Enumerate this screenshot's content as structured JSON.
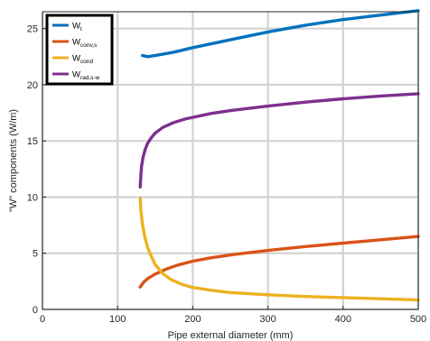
{
  "chart_data": {
    "type": "line",
    "xlabel": "Pipe external diameter (mm)",
    "ylabel": "\"W\" components (W/m)",
    "xlim": [
      0,
      500
    ],
    "ylim": [
      0,
      26.5
    ],
    "xticks": [
      0,
      100,
      200,
      300,
      400,
      500
    ],
    "yticks": [
      0,
      5,
      10,
      15,
      20,
      25
    ],
    "xtick_labels": [
      "0",
      "100",
      "200",
      "300",
      "400",
      "500"
    ],
    "ytick_labels": [
      "0",
      "5",
      "10",
      "15",
      "20",
      "25"
    ],
    "grid": true,
    "legend_position": "top-left",
    "series": [
      {
        "name": "W_t",
        "label_main": "W",
        "label_sub": "t",
        "color": "#0072BD",
        "x": [
          133,
          140,
          150,
          175,
          200,
          250,
          300,
          350,
          400,
          450,
          500
        ],
        "y": [
          22.6,
          22.5,
          22.6,
          22.9,
          23.3,
          24.0,
          24.7,
          25.3,
          25.8,
          26.2,
          26.6
        ]
      },
      {
        "name": "W_conv,s",
        "label_main": "W",
        "label_sub": "conv,s",
        "color": "#D95319",
        "x": [
          130,
          135,
          140,
          150,
          165,
          180,
          200,
          225,
          250,
          275,
          300,
          350,
          400,
          450,
          500
        ],
        "y": [
          2.0,
          2.45,
          2.75,
          3.15,
          3.6,
          3.95,
          4.3,
          4.6,
          4.85,
          5.05,
          5.25,
          5.6,
          5.9,
          6.2,
          6.5
        ]
      },
      {
        "name": "W_cond",
        "label_main": "W",
        "label_sub": "cond",
        "color": "#EDB120",
        "x": [
          130,
          131,
          133,
          136,
          140,
          145,
          150,
          160,
          170,
          185,
          200,
          225,
          250,
          300,
          350,
          400,
          450,
          500
        ],
        "y": [
          9.9,
          8.8,
          7.6,
          6.5,
          5.5,
          4.7,
          4.0,
          3.2,
          2.7,
          2.25,
          1.95,
          1.7,
          1.5,
          1.3,
          1.15,
          1.05,
          0.95,
          0.85
        ]
      },
      {
        "name": "W_rad,s-w",
        "label_main": "W",
        "label_sub": "rad,s-w",
        "color": "#7E2F8E",
        "x": [
          130,
          131,
          132,
          134,
          137,
          140,
          145,
          150,
          160,
          175,
          190,
          200,
          225,
          250,
          300,
          350,
          400,
          450,
          500
        ],
        "y": [
          10.9,
          12.0,
          12.8,
          13.6,
          14.3,
          14.8,
          15.3,
          15.7,
          16.2,
          16.65,
          16.95,
          17.1,
          17.45,
          17.7,
          18.1,
          18.45,
          18.75,
          19.0,
          19.2
        ]
      }
    ]
  }
}
